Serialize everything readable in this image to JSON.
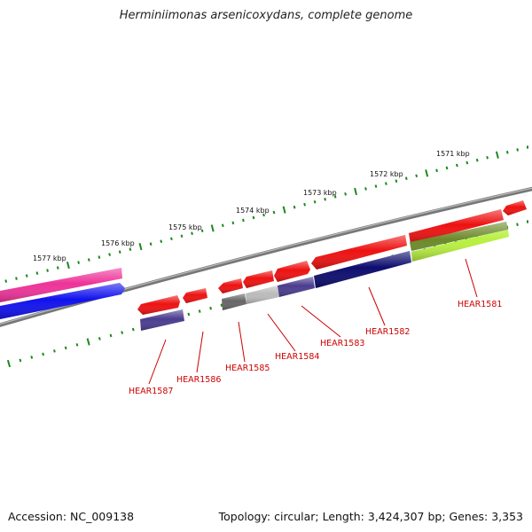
{
  "title": "Herminiimonas arsenicoxydans, complete genome",
  "footer": {
    "accession": "Accession: NC_009138",
    "topology": "Topology: circular; Length: 3,424,307 bp; Genes: 3,353"
  },
  "kbp_labels": [
    "1577 kbp",
    "1576 kbp",
    "1575 kbp",
    "1574 kbp",
    "1573 kbp",
    "1572 kbp",
    "1571 kbp"
  ],
  "gene_labels": [
    "HEAR1587",
    "HEAR1586",
    "HEAR1585",
    "HEAR1584",
    "HEAR1583",
    "HEAR1582",
    "HEAR1581"
  ],
  "colors": {
    "backbone": "#888888",
    "tick": "#1a8a1a",
    "label": "#cc0000",
    "gene_red": "#ee1111",
    "gene_pink": "#ee3399",
    "gene_blue": "#1111ee",
    "gene_purple": "#4a3d8f",
    "gene_navy": "#0c0c6e",
    "gene_olive": "#6b8a2a",
    "gene_lime": "#b8f040",
    "gene_darkgray": "#666666",
    "gene_lightgray": "#bbbbbb"
  }
}
